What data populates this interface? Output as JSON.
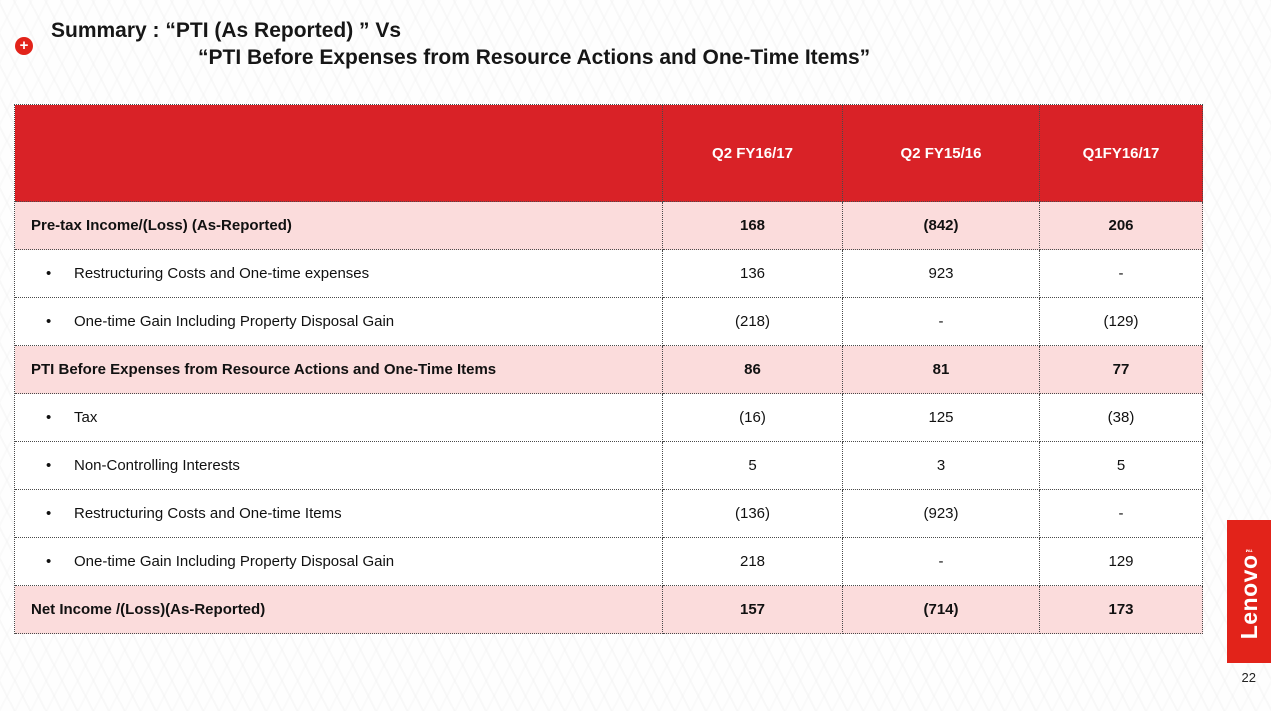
{
  "header": {
    "title_line1": "Summary : “PTI (As Reported) ” Vs",
    "title_line2": "“PTI Before Expenses from Resource Actions and One-Time Items”"
  },
  "icons": {
    "plus_bullet": "+"
  },
  "table": {
    "bullet_char": "•",
    "columns": [
      "",
      "Q2 FY16/17",
      "Q2 FY15/16",
      "Q1FY16/17"
    ],
    "rows": [
      {
        "label": "Pre-tax Income/(Loss) (As-Reported)",
        "values": [
          "168",
          "(842)",
          "206"
        ],
        "style": "highlight",
        "bullet": false
      },
      {
        "label": "Restructuring Costs and One-time expenses",
        "values": [
          "136",
          "923",
          "-"
        ],
        "style": "normal",
        "bullet": true
      },
      {
        "label": "One-time Gain Including Property Disposal Gain",
        "values": [
          "(218)",
          "-",
          "(129)"
        ],
        "style": "normal",
        "bullet": true
      },
      {
        "label": "PTI Before Expenses from Resource Actions and One-Time Items",
        "values": [
          "86",
          "81",
          "77"
        ],
        "style": "highlight",
        "bullet": false
      },
      {
        "label": "Tax",
        "values": [
          "(16)",
          "125",
          "(38)"
        ],
        "style": "normal",
        "bullet": true
      },
      {
        "label": "Non-Controlling Interests",
        "values": [
          "5",
          "3",
          "5"
        ],
        "style": "normal",
        "bullet": true
      },
      {
        "label": "Restructuring Costs and One-time Items",
        "values": [
          "(136)",
          "(923)",
          "-"
        ],
        "style": "normal",
        "bullet": true
      },
      {
        "label": "One-time Gain Including Property Disposal Gain",
        "values": [
          "218",
          "-",
          "129"
        ],
        "style": "normal",
        "bullet": true
      },
      {
        "label": "Net Income /(Loss)(As-Reported)",
        "values": [
          "157",
          "(714)",
          "173"
        ],
        "style": "highlight",
        "bullet": false
      }
    ]
  },
  "footer": {
    "logo_text": "Lenovo",
    "logo_tm": "™",
    "page_number": "22"
  },
  "colors": {
    "header_red": "#D92227",
    "lenovo_red": "#E2231A",
    "highlight_pink": "#FBDCDC",
    "border_dot": "#4a4a4a"
  }
}
